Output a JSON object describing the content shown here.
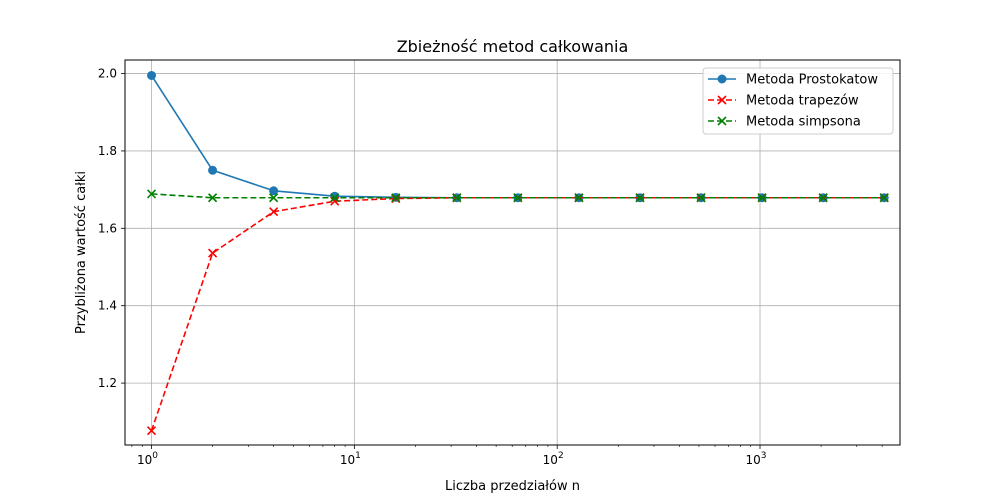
{
  "chart_data": {
    "type": "line",
    "title": "Zbieżność metod całkowania",
    "xlabel": "Liczba przedziałów n",
    "ylabel": "Przybliżona wartość całki",
    "xscale": "log",
    "xlim": [
      0.74,
      4900
    ],
    "ylim": [
      1.04,
      2.035
    ],
    "x": [
      1,
      2,
      4,
      8,
      16,
      32,
      64,
      128,
      256,
      512,
      1024,
      2048,
      4096
    ],
    "xticks": [
      {
        "value": 1,
        "base": "10",
        "exp": "0"
      },
      {
        "value": 10,
        "base": "10",
        "exp": "1"
      },
      {
        "value": 100,
        "base": "10",
        "exp": "2"
      },
      {
        "value": 1000,
        "base": "10",
        "exp": "3"
      }
    ],
    "yticks": [
      {
        "value": 1.2,
        "label": "1.2"
      },
      {
        "value": 1.4,
        "label": "1.4"
      },
      {
        "value": 1.6,
        "label": "1.6"
      },
      {
        "value": 1.8,
        "label": "1.8"
      },
      {
        "value": 2.0,
        "label": "2.0"
      }
    ],
    "grid": true,
    "legend_position": "top-right",
    "series": [
      {
        "name": "Metoda Prostokatow",
        "color": "#1f77b4",
        "linestyle": "solid",
        "marker": "circle",
        "values": [
          1.995,
          1.75,
          1.697,
          1.683,
          1.68,
          1.679,
          1.679,
          1.679,
          1.679,
          1.679,
          1.679,
          1.679,
          1.679
        ]
      },
      {
        "name": "Metoda trapezów",
        "color": "#ff0000",
        "linestyle": "dashed",
        "marker": "x",
        "values": [
          1.077,
          1.536,
          1.643,
          1.67,
          1.677,
          1.679,
          1.679,
          1.679,
          1.679,
          1.679,
          1.679,
          1.679,
          1.679
        ]
      },
      {
        "name": "Metoda simpsona",
        "color": "#008000",
        "linestyle": "dashed",
        "marker": "x",
        "values": [
          1.689,
          1.679,
          1.679,
          1.679,
          1.679,
          1.679,
          1.679,
          1.679,
          1.679,
          1.679,
          1.679,
          1.679,
          1.679
        ]
      }
    ]
  }
}
